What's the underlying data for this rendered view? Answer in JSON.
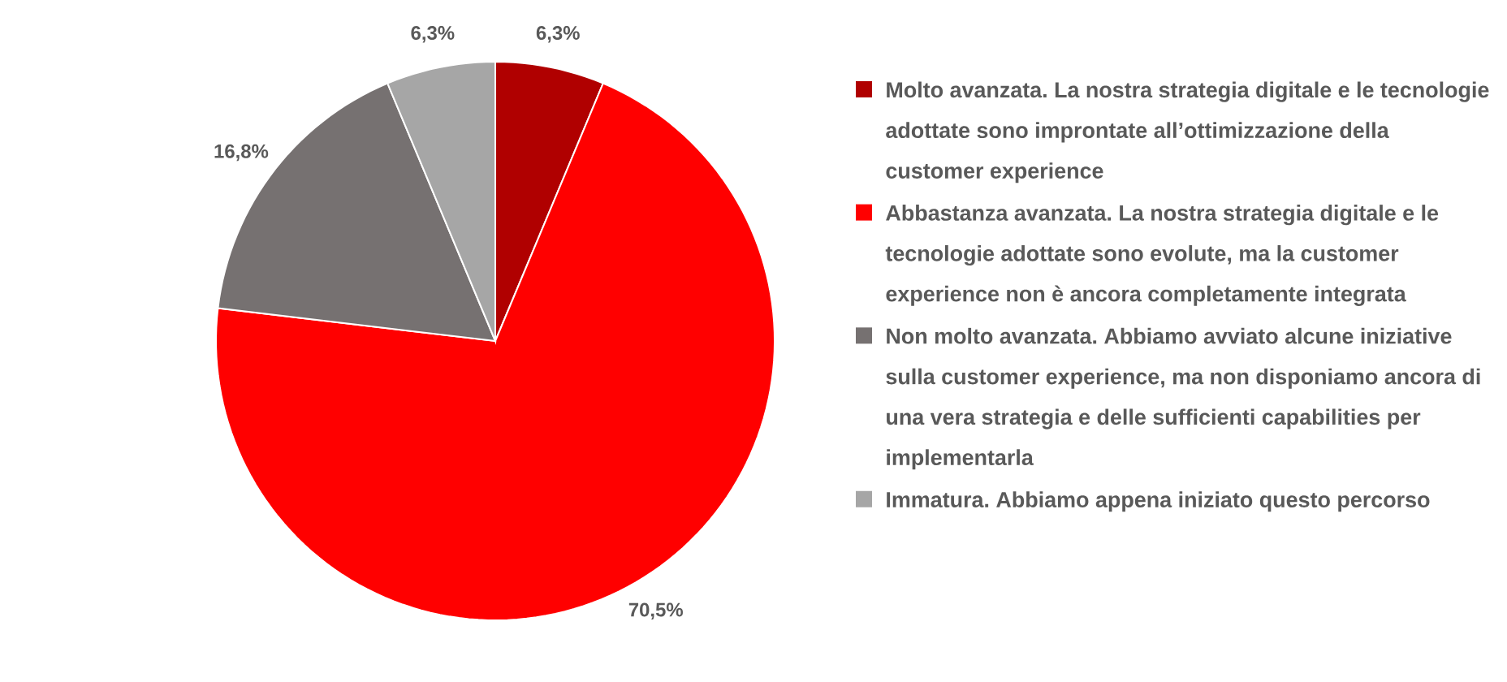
{
  "chart_data": {
    "type": "pie",
    "categories": [
      "Molto avanzata. La nostra strategia digitale e le tecnologie adottate sono improntate all’ottimizzazione della customer experience",
      "Abbastanza avanzata. La nostra strategia digitale e le tecnologie adottate sono evolute, ma la customer experience non è ancora completamente integrata",
      "Non molto avanzata. Abbiamo avviato alcune iniziative sulla customer experience, ma non disponiamo ancora di una vera strategia e delle sufficienti capabilities per implementarla",
      "Immatura. Abbiamo appena iniziato questo percorso"
    ],
    "values": [
      6.3,
      70.5,
      16.8,
      6.3
    ],
    "value_labels": [
      "6,3%",
      "70,5%",
      "16,8%",
      "6,3%"
    ],
    "colors": [
      "#b00000",
      "#ff0000",
      "#767171",
      "#a6a6a6"
    ],
    "legend": "right"
  }
}
